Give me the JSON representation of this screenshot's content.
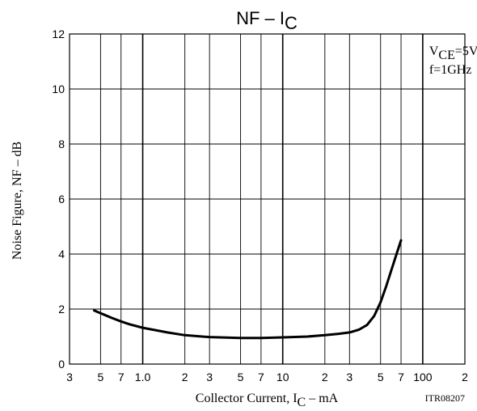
{
  "chart_data": {
    "type": "line",
    "title": {
      "main": "NF  –  I",
      "sub": "C"
    },
    "xlabel": {
      "main": "Collector Current, I",
      "sub": "C",
      "tail": "  –  mA"
    },
    "ylabel": "Noise Figure, NF  –  dB",
    "code": "ITR08207",
    "x_scale": "log",
    "xlim": [
      0.3,
      200
    ],
    "ylim": [
      0,
      12
    ],
    "x_ticks": [
      {
        "value": 0.3,
        "label": "3"
      },
      {
        "value": 0.5,
        "label": "5"
      },
      {
        "value": 0.7,
        "label": "7"
      },
      {
        "value": 1,
        "label": "1.0"
      },
      {
        "value": 2,
        "label": "2"
      },
      {
        "value": 3,
        "label": "3"
      },
      {
        "value": 5,
        "label": "5"
      },
      {
        "value": 7,
        "label": "7"
      },
      {
        "value": 10,
        "label": "10"
      },
      {
        "value": 20,
        "label": "2"
      },
      {
        "value": 30,
        "label": "3"
      },
      {
        "value": 50,
        "label": "5"
      },
      {
        "value": 70,
        "label": "7"
      },
      {
        "value": 100,
        "label": "100"
      },
      {
        "value": 200,
        "label": "2"
      }
    ],
    "y_ticks": [
      {
        "value": 0,
        "label": "0"
      },
      {
        "value": 2,
        "label": "2"
      },
      {
        "value": 4,
        "label": "4"
      },
      {
        "value": 6,
        "label": "6"
      },
      {
        "value": 8,
        "label": "8"
      },
      {
        "value": 10,
        "label": "10"
      },
      {
        "value": 12,
        "label": "12"
      }
    ],
    "grid": true,
    "conditions": [
      {
        "main": "V",
        "sub": "CE",
        "tail": "=5V"
      },
      {
        "main": "f=1GHz",
        "sub": "",
        "tail": ""
      }
    ],
    "legend_position": "top-right",
    "series": [
      {
        "x": [
          0.45,
          0.5,
          0.6,
          0.7,
          0.8,
          1.0,
          1.5,
          2.0,
          3.0,
          5.0,
          7.0,
          10,
          15,
          20,
          25,
          30,
          35,
          40,
          45,
          50,
          55,
          60,
          65,
          70
        ],
        "y": [
          1.95,
          1.85,
          1.68,
          1.55,
          1.45,
          1.32,
          1.15,
          1.05,
          0.98,
          0.95,
          0.95,
          0.97,
          1.0,
          1.05,
          1.1,
          1.15,
          1.25,
          1.42,
          1.75,
          2.25,
          2.85,
          3.45,
          4.0,
          4.5
        ]
      }
    ],
    "colors": {
      "line": "#000000",
      "grid": "#000000",
      "background": "#ffffff"
    }
  }
}
